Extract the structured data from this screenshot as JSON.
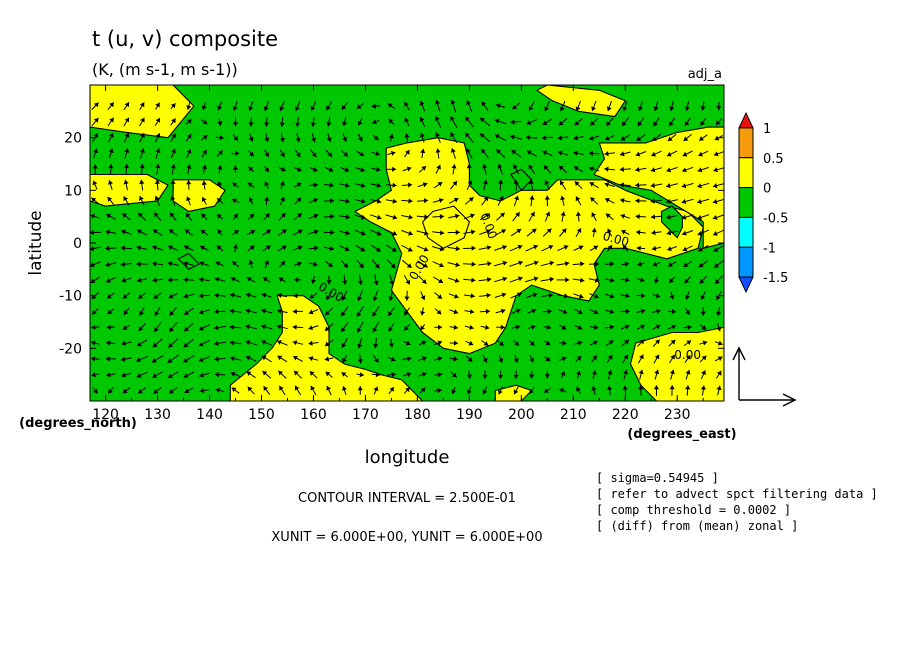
{
  "chart_data": {
    "type": "heatmap",
    "title": "t (u, v) composite",
    "subtitle": "(K, (m s-1, m s-1))",
    "panel_label": "adj_a",
    "xlabel": "longitude",
    "ylabel": "latitude",
    "x_unit_label": "(degrees_east)",
    "y_unit_label": "(degrees_north)",
    "xlim": [
      117,
      239
    ],
    "ylim": [
      -30,
      30
    ],
    "x_ticks": [
      120,
      130,
      140,
      150,
      160,
      170,
      180,
      190,
      200,
      210,
      220,
      230
    ],
    "y_ticks": [
      20,
      10,
      0,
      -10,
      -20
    ],
    "colorbar": {
      "tick_labels": [
        "1",
        "0.5",
        "0",
        "-0.5",
        "-1",
        "-1.5"
      ],
      "bins": [
        {
          "from": 1.0,
          "to": 1.25,
          "color": "#e8120c"
        },
        {
          "from": 0.5,
          "to": 1.0,
          "color": "#f59b0c"
        },
        {
          "from": 0.0,
          "to": 0.5,
          "color": "#ffff00"
        },
        {
          "from": -0.5,
          "to": 0.0,
          "color": "#00c800"
        },
        {
          "from": -1.0,
          "to": -0.5,
          "color": "#00ffff"
        },
        {
          "from": -1.5,
          "to": -1.0,
          "color": "#0096ff"
        },
        {
          "from": -1.75,
          "to": -1.5,
          "color": "#1450ff"
        }
      ]
    },
    "background_value_color": "#00c800",
    "positive_regions": [
      {
        "value": 0.25,
        "polygon": [
          [
            117,
            30
          ],
          [
            133,
            30
          ],
          [
            137,
            26
          ],
          [
            132,
            20
          ],
          [
            124,
            21
          ],
          [
            117,
            22
          ]
        ]
      },
      {
        "value": 0.25,
        "polygon": [
          [
            117,
            13
          ],
          [
            128,
            13
          ],
          [
            132,
            11
          ],
          [
            130,
            8
          ],
          [
            120,
            7
          ],
          [
            117,
            8
          ]
        ]
      },
      {
        "value": 0.25,
        "polygon": [
          [
            133,
            12
          ],
          [
            140,
            12
          ],
          [
            143,
            10
          ],
          [
            141,
            7
          ],
          [
            136,
            6
          ],
          [
            133,
            8
          ]
        ]
      },
      {
        "value": 0.25,
        "polygon": [
          [
            174,
            18
          ],
          [
            178,
            19
          ],
          [
            184,
            20
          ],
          [
            189,
            19
          ],
          [
            190,
            15
          ],
          [
            190,
            11
          ],
          [
            192,
            9
          ],
          [
            196,
            8
          ],
          [
            200,
            10
          ],
          [
            205,
            10
          ],
          [
            207,
            12
          ],
          [
            212,
            12
          ],
          [
            216,
            12
          ],
          [
            220,
            10
          ],
          [
            228,
            7
          ],
          [
            232,
            6
          ],
          [
            235,
            3
          ],
          [
            234,
            -1
          ],
          [
            228,
            -3
          ],
          [
            224,
            -2
          ],
          [
            220,
            -1
          ],
          [
            216,
            -1
          ],
          [
            214,
            -4
          ],
          [
            215,
            -8
          ],
          [
            213,
            -11
          ],
          [
            208,
            -10
          ],
          [
            202,
            -8
          ],
          [
            199,
            -10
          ],
          [
            198,
            -13
          ],
          [
            197,
            -16
          ],
          [
            195,
            -19
          ],
          [
            190,
            -21
          ],
          [
            185,
            -20
          ],
          [
            181,
            -17
          ],
          [
            178,
            -13
          ],
          [
            175,
            -9
          ],
          [
            177,
            -2
          ],
          [
            175,
            2
          ],
          [
            171,
            4
          ],
          [
            168,
            6
          ],
          [
            172,
            8
          ],
          [
            175,
            10
          ],
          [
            174,
            14
          ]
        ]
      },
      {
        "value": 0.25,
        "polygon": [
          [
            183,
            6
          ],
          [
            187,
            7
          ],
          [
            190,
            4
          ],
          [
            189,
            1
          ],
          [
            185,
            -1
          ],
          [
            182,
            1
          ],
          [
            181,
            4
          ]
        ]
      },
      {
        "value": 0.25,
        "polygon": [
          [
            205,
            30
          ],
          [
            215,
            29
          ],
          [
            220,
            27
          ],
          [
            218,
            24
          ],
          [
            211,
            25
          ],
          [
            206,
            27
          ],
          [
            203,
            29
          ]
        ]
      },
      {
        "value": 0.25,
        "polygon": [
          [
            215,
            19
          ],
          [
            224,
            19
          ],
          [
            230,
            21
          ],
          [
            236,
            22
          ],
          [
            239,
            22
          ],
          [
            239,
            0
          ],
          [
            235,
            -1
          ],
          [
            235,
            4
          ],
          [
            230,
            7
          ],
          [
            225,
            10
          ],
          [
            219,
            11
          ],
          [
            214,
            13
          ],
          [
            216,
            16
          ]
        ]
      },
      {
        "value": 0.25,
        "polygon": [
          [
            153,
            -10
          ],
          [
            158,
            -10
          ],
          [
            161,
            -12
          ],
          [
            163,
            -16
          ],
          [
            163,
            -21
          ],
          [
            166,
            -23
          ],
          [
            170,
            -24
          ],
          [
            173,
            -25
          ],
          [
            177,
            -26
          ],
          [
            179,
            -28
          ],
          [
            181,
            -30
          ],
          [
            144,
            -30
          ],
          [
            144,
            -27
          ],
          [
            149,
            -23
          ],
          [
            152,
            -20
          ],
          [
            154,
            -17
          ],
          [
            154,
            -13
          ]
        ]
      },
      {
        "value": 0.25,
        "polygon": [
          [
            195,
            -30
          ],
          [
            200,
            -30
          ],
          [
            202,
            -28
          ],
          [
            199,
            -27
          ],
          [
            195,
            -28
          ]
        ]
      },
      {
        "value": 0.25,
        "polygon": [
          [
            222,
            -19
          ],
          [
            229,
            -17
          ],
          [
            234,
            -17
          ],
          [
            239,
            -16
          ],
          [
            239,
            -30
          ],
          [
            226,
            -30
          ],
          [
            223,
            -27
          ],
          [
            221,
            -23
          ]
        ]
      }
    ],
    "negative_islands": [
      {
        "value": -0.25,
        "polygon": [
          [
            198,
            13
          ],
          [
            200,
            10
          ],
          [
            202,
            12
          ],
          [
            200,
            14
          ]
        ]
      },
      {
        "value": -0.25,
        "polygon": [
          [
            229,
            7
          ],
          [
            231,
            5
          ],
          [
            231,
            3
          ],
          [
            230,
            1
          ],
          [
            227,
            4
          ],
          [
            227,
            6
          ]
        ]
      },
      {
        "value": -0.25,
        "polygon": [
          [
            136,
            -2
          ],
          [
            138,
            -4
          ],
          [
            136,
            -5
          ],
          [
            134,
            -3
          ]
        ]
      }
    ],
    "contour_labels": [
      {
        "text": "0.00",
        "lon": 193,
        "lat": 3,
        "rotate": 70
      },
      {
        "text": "0.00",
        "lon": 163,
        "lat": -10,
        "rotate": 30
      },
      {
        "text": "0.00",
        "lon": 181,
        "lat": -5,
        "rotate": -60
      },
      {
        "text": "0.00",
        "lon": 218,
        "lat": 0,
        "rotate": 15
      },
      {
        "text": "0.00",
        "lon": 232,
        "lat": -22,
        "rotate": 0
      }
    ],
    "vector_field": {
      "lon_start": 118,
      "lon_end": 238,
      "lon_step": 3,
      "lat_start": -28,
      "lat_end": 28,
      "lat_step": 3,
      "reference_vector_label": "",
      "vortices": [
        {
          "lon": 127,
          "lat": -18,
          "strength": 1.0,
          "sense": "cw"
        },
        {
          "lon": 175,
          "lat": -18,
          "strength": 1.0,
          "sense": "ccw"
        },
        {
          "lon": 195,
          "lat": 27,
          "strength": 1.0,
          "sense": "cw"
        },
        {
          "lon": 205,
          "lat": -10,
          "strength": 0.8,
          "sense": "cw"
        },
        {
          "lon": 150,
          "lat": 5,
          "strength": 0.7,
          "sense": "ccw"
        }
      ]
    }
  },
  "annotations": {
    "contour_interval": "CONTOUR INTERVAL = 2.500E-01",
    "units": "XUNIT = 6.000E+00, YUNIT = 6.000E+00",
    "notes": [
      "[ sigma=0.54945 ]",
      "[ refer to advect spct filtering data ]",
      "[ comp threshold = 0.0002 ]",
      "[ (diff) from (mean) zonal ]"
    ]
  }
}
